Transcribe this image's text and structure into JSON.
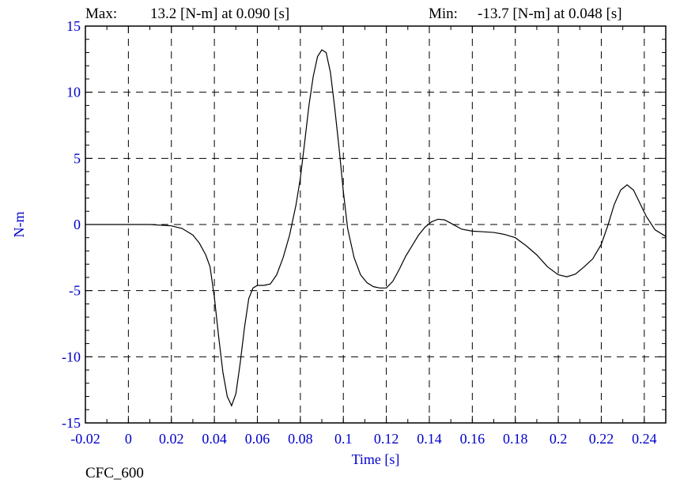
{
  "header": {
    "max_label": "Max:",
    "max_value": "13.2 [N-m] at 0.090 [s]",
    "min_label": "Min:",
    "min_value": "-13.7 [N-m] at 0.048 [s]"
  },
  "footer": {
    "filter_label": "CFC_600"
  },
  "chart_data": {
    "type": "line",
    "title": "",
    "xlabel": "Time [s]",
    "ylabel": "N-m",
    "xlim": [
      -0.02,
      0.25
    ],
    "ylim": [
      -15,
      15
    ],
    "grid": true,
    "legend": "none",
    "x_ticks": [
      -0.02,
      0,
      0.02,
      0.04,
      0.06,
      0.08,
      0.1,
      0.12,
      0.14,
      0.16,
      0.18,
      0.2,
      0.22,
      0.24
    ],
    "x_tick_labels": [
      "-0.02",
      "0",
      "0.02",
      "0.04",
      "0.06",
      "0.08",
      "0.1",
      "0.12",
      "0.14",
      "0.16",
      "0.18",
      "0.2",
      "0.22",
      "0.24"
    ],
    "y_ticks": [
      15,
      10,
      5,
      0,
      -5,
      -10,
      -15
    ],
    "y_tick_labels": [
      "15",
      "10",
      "5",
      "0",
      "-5",
      "-10",
      "-15"
    ],
    "series": [
      {
        "color": "#000000",
        "x": [
          -0.02,
          -0.01,
          0,
          0.01,
          0.02,
          0.025,
          0.03,
          0.033,
          0.036,
          0.038,
          0.04,
          0.042,
          0.044,
          0.046,
          0.048,
          0.05,
          0.052,
          0.054,
          0.056,
          0.058,
          0.06,
          0.063,
          0.066,
          0.069,
          0.072,
          0.075,
          0.078,
          0.08,
          0.082,
          0.084,
          0.086,
          0.088,
          0.09,
          0.092,
          0.094,
          0.096,
          0.098,
          0.1,
          0.102,
          0.105,
          0.108,
          0.111,
          0.114,
          0.117,
          0.12,
          0.123,
          0.126,
          0.129,
          0.132,
          0.135,
          0.138,
          0.141,
          0.144,
          0.147,
          0.15,
          0.155,
          0.16,
          0.165,
          0.17,
          0.175,
          0.18,
          0.185,
          0.19,
          0.195,
          0.2,
          0.204,
          0.208,
          0.212,
          0.216,
          0.22,
          0.223,
          0.226,
          0.229,
          0.232,
          0.235,
          0.238,
          0.241,
          0.245,
          0.25
        ],
        "y": [
          0,
          0,
          0,
          0,
          -0.1,
          -0.3,
          -0.8,
          -1.4,
          -2.3,
          -3.2,
          -5.5,
          -8.5,
          -11.2,
          -13.0,
          -13.7,
          -12.8,
          -10.5,
          -7.8,
          -5.6,
          -4.8,
          -4.6,
          -4.6,
          -4.5,
          -3.8,
          -2.5,
          -0.8,
          1.5,
          3.5,
          6.2,
          9.0,
          11.2,
          12.7,
          13.2,
          13.0,
          11.5,
          8.8,
          5.8,
          2.5,
          -0.3,
          -2.5,
          -3.8,
          -4.4,
          -4.7,
          -4.8,
          -4.8,
          -4.3,
          -3.4,
          -2.4,
          -1.6,
          -0.8,
          -0.2,
          0.2,
          0.4,
          0.35,
          0.1,
          -0.35,
          -0.5,
          -0.55,
          -0.6,
          -0.75,
          -1.0,
          -1.6,
          -2.3,
          -3.2,
          -3.8,
          -3.95,
          -3.75,
          -3.2,
          -2.6,
          -1.5,
          -0.1,
          1.5,
          2.6,
          3.0,
          2.6,
          1.6,
          0.6,
          -0.4,
          -0.9
        ]
      }
    ]
  }
}
